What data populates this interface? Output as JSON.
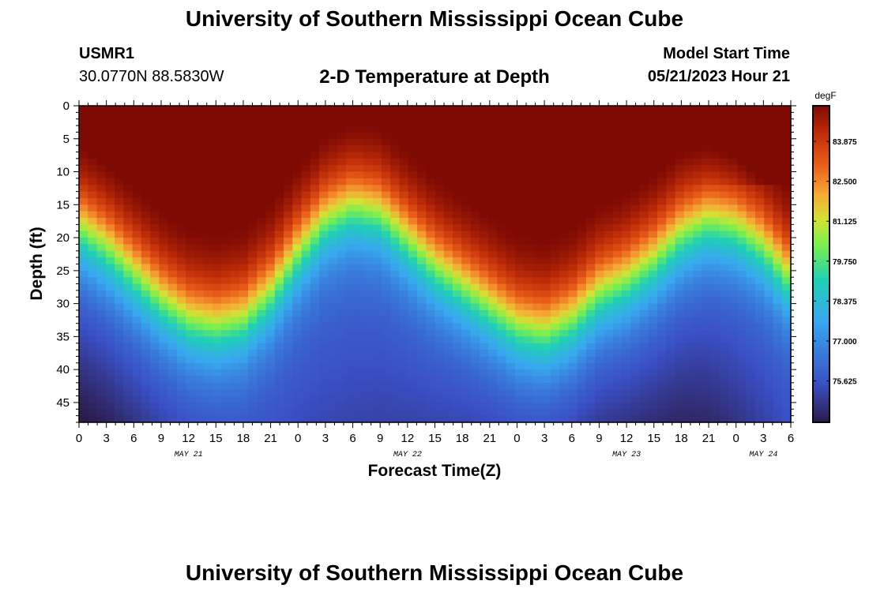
{
  "page": {
    "title": "University of Southern Mississippi Ocean Cube",
    "footer_title": "University of Southern Mississippi Ocean Cube",
    "station_id": "USMR1",
    "station_coords": "30.0770N  88.5830W",
    "model_start_label": "Model Start Time",
    "model_start_value": "05/21/2023 Hour 21"
  },
  "chart_data": {
    "type": "heatmap",
    "title": "2-D Temperature at Depth",
    "xlabel": "Forecast Time(Z)",
    "ylabel": "Depth (ft)",
    "x_unit": "forecast hour since 2023-05-21 00Z",
    "xlim": [
      0,
      78
    ],
    "ylim": [
      0,
      48
    ],
    "x_ticks": [
      0,
      3,
      6,
      9,
      12,
      15,
      18,
      21,
      24,
      27,
      30,
      33,
      36,
      39,
      42,
      45,
      48,
      51,
      54,
      57,
      60,
      63,
      66,
      69,
      72,
      75,
      78
    ],
    "x_tick_labels": [
      "0",
      "3",
      "6",
      "9",
      "12",
      "15",
      "18",
      "21",
      "0",
      "3",
      "6",
      "9",
      "12",
      "15",
      "18",
      "21",
      "0",
      "3",
      "6",
      "9",
      "12",
      "15",
      "18",
      "21",
      "0",
      "3",
      "6"
    ],
    "date_labels": [
      {
        "x": 12,
        "label": "MAY 21"
      },
      {
        "x": 36,
        "label": "MAY 22"
      },
      {
        "x": 60,
        "label": "MAY 23"
      },
      {
        "x": 75,
        "label": "MAY 24"
      }
    ],
    "y_ticks": [
      0,
      5,
      10,
      15,
      20,
      25,
      30,
      35,
      40,
      45
    ],
    "y_tick_labels": [
      "0",
      "5",
      "10",
      "15",
      "20",
      "25",
      "30",
      "35",
      "40",
      "45"
    ],
    "thermocline_depth_ft": [
      [
        0,
        18
      ],
      [
        3,
        21
      ],
      [
        6,
        25
      ],
      [
        9,
        29
      ],
      [
        12,
        32
      ],
      [
        15,
        33
      ],
      [
        18,
        32
      ],
      [
        21,
        28
      ],
      [
        24,
        22
      ],
      [
        27,
        17
      ],
      [
        30,
        15
      ],
      [
        33,
        16
      ],
      [
        36,
        20
      ],
      [
        39,
        24
      ],
      [
        42,
        27
      ],
      [
        45,
        30
      ],
      [
        48,
        33
      ],
      [
        51,
        34
      ],
      [
        54,
        32
      ],
      [
        57,
        28
      ],
      [
        60,
        26
      ],
      [
        63,
        23
      ],
      [
        66,
        19
      ],
      [
        69,
        17
      ],
      [
        72,
        18
      ],
      [
        75,
        21
      ],
      [
        78,
        26
      ]
    ],
    "colorbar": {
      "unit": "degF",
      "min": 74.2,
      "max": 85.1,
      "ticks": [
        83.875,
        82.5,
        81.125,
        79.75,
        78.375,
        77.0,
        75.625
      ],
      "tick_labels": [
        "83.875",
        "82.500",
        "81.125",
        "79.750",
        "78.375",
        "77.000",
        "75.625"
      ]
    }
  }
}
